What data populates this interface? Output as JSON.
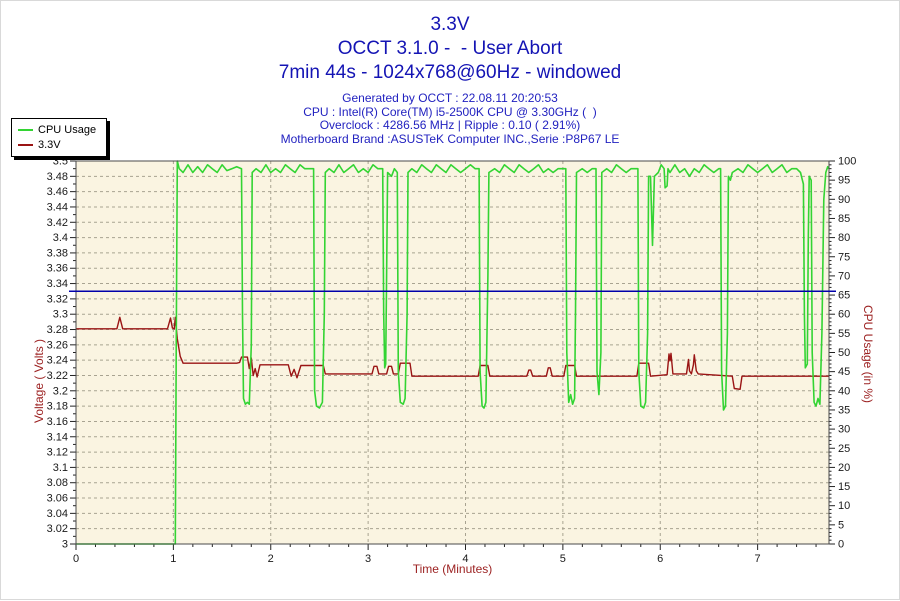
{
  "header": {
    "title1": "3.3V",
    "title2": "OCCT 3.1.0 -  - User Abort",
    "title3": "7min 44s - 1024x768@60Hz - windowed",
    "info1": "Generated by OCCT : 22.08.11 20:20:53",
    "info2": "CPU : Intel(R) Core(TM) i5-2500K CPU @ 3.30GHz (  )",
    "info3": "Overclock : 4286.56 MHz | Ripple : 0.10 ( 2.91%)",
    "info4": "Motherboard Brand :ASUSTeK Computer INC.,Serie :P8P67 LE"
  },
  "colors": {
    "title_blue": "#1414b4",
    "info_blue": "#2222c0",
    "cpu_green": "#33d433",
    "volt_red": "#9a1414",
    "axis_title_red": "#9b1f1f",
    "tick_label": "#1a1a1a",
    "plot_bg": "#faf4e1",
    "grid": "#a8a391",
    "plot_border": "#4a4a4a",
    "reference_blue": "#0000aa"
  },
  "chart_data": {
    "type": "line",
    "title": "3.3V",
    "xlabel": "Time (Minutes)",
    "ylabel_left": "Voltage ( Volts )",
    "ylabel_right": "CPU Usage (in %)",
    "x_range": [
      0,
      7.733
    ],
    "x_major_step": 1,
    "x_minor_step": 0.2,
    "y_left_range": [
      3.0,
      3.5
    ],
    "y_left_major_step": 0.02,
    "y_left_minor_step": 0.01,
    "y_right_range": [
      0,
      100
    ],
    "y_right_major_step": 5,
    "y_right_minor_step": 1,
    "grid": "dashed",
    "legend_position": "top-left",
    "reference_line": {
      "axis": "left",
      "value": 3.33
    },
    "series": [
      {
        "name": "3.3V",
        "axis": "left",
        "color": "#9a1414",
        "points": [
          [
            0,
            3.281
          ],
          [
            0.42,
            3.281
          ],
          [
            0.45,
            3.296
          ],
          [
            0.48,
            3.281
          ],
          [
            0.94,
            3.281
          ],
          [
            0.97,
            3.295
          ],
          [
            0.99,
            3.282
          ],
          [
            1.01,
            3.281
          ],
          [
            1.02,
            3.296
          ],
          [
            1.04,
            3.268
          ],
          [
            1.07,
            3.245
          ],
          [
            1.1,
            3.236
          ],
          [
            1.65,
            3.236
          ],
          [
            1.68,
            3.237
          ],
          [
            1.7,
            3.244
          ],
          [
            1.76,
            3.244
          ],
          [
            1.78,
            3.229
          ],
          [
            1.8,
            3.243
          ],
          [
            1.82,
            3.22
          ],
          [
            1.84,
            3.229
          ],
          [
            1.86,
            3.218
          ],
          [
            1.89,
            3.234
          ],
          [
            2.18,
            3.234
          ],
          [
            2.21,
            3.219
          ],
          [
            2.24,
            3.228
          ],
          [
            2.27,
            3.217
          ],
          [
            2.31,
            3.233
          ],
          [
            2.54,
            3.233
          ],
          [
            2.56,
            3.222
          ],
          [
            3.04,
            3.222
          ],
          [
            3.06,
            3.232
          ],
          [
            3.09,
            3.232
          ],
          [
            3.11,
            3.222
          ],
          [
            3.19,
            3.222
          ],
          [
            3.21,
            3.232
          ],
          [
            3.24,
            3.232
          ],
          [
            3.26,
            3.222
          ],
          [
            3.31,
            3.222
          ],
          [
            3.33,
            3.236
          ],
          [
            3.43,
            3.236
          ],
          [
            3.45,
            3.219
          ],
          [
            4.13,
            3.219
          ],
          [
            4.15,
            3.233
          ],
          [
            4.23,
            3.233
          ],
          [
            4.25,
            3.219
          ],
          [
            4.63,
            3.219
          ],
          [
            4.65,
            3.227
          ],
          [
            4.67,
            3.227
          ],
          [
            4.69,
            3.219
          ],
          [
            4.83,
            3.219
          ],
          [
            4.85,
            3.23
          ],
          [
            4.87,
            3.23
          ],
          [
            4.89,
            3.219
          ],
          [
            5.01,
            3.219
          ],
          [
            5.03,
            3.233
          ],
          [
            5.12,
            3.233
          ],
          [
            5.14,
            3.219
          ],
          [
            5.76,
            3.219
          ],
          [
            5.78,
            3.236
          ],
          [
            5.88,
            3.236
          ],
          [
            5.9,
            3.219
          ],
          [
            6.07,
            3.221
          ],
          [
            6.09,
            3.248
          ],
          [
            6.1,
            3.239
          ],
          [
            6.11,
            3.249
          ],
          [
            6.13,
            3.222
          ],
          [
            6.27,
            3.222
          ],
          [
            6.29,
            3.241
          ],
          [
            6.3,
            3.226
          ],
          [
            6.32,
            3.222
          ],
          [
            6.34,
            3.234
          ],
          [
            6.35,
            3.247
          ],
          [
            6.37,
            3.226
          ],
          [
            6.39,
            3.222
          ],
          [
            6.74,
            3.219
          ],
          [
            6.76,
            3.203
          ],
          [
            6.82,
            3.202
          ],
          [
            6.84,
            3.219
          ],
          [
            7.73,
            3.219
          ]
        ]
      },
      {
        "name": "CPU Usage",
        "axis": "right",
        "color": "#33d433",
        "points": [
          [
            0,
            0
          ],
          [
            0.99,
            0
          ],
          [
            1.02,
            0
          ],
          [
            1.03,
            55
          ],
          [
            1.04,
            100
          ],
          [
            1.06,
            98
          ],
          [
            1.1,
            97
          ],
          [
            1.15,
            99
          ],
          [
            1.2,
            97
          ],
          [
            1.25,
            98.5
          ],
          [
            1.3,
            97
          ],
          [
            1.35,
            99
          ],
          [
            1.4,
            98
          ],
          [
            1.45,
            97
          ],
          [
            1.5,
            99
          ],
          [
            1.55,
            97.5
          ],
          [
            1.6,
            98
          ],
          [
            1.65,
            98.5
          ],
          [
            1.7,
            98
          ],
          [
            1.71,
            60
          ],
          [
            1.72,
            38
          ],
          [
            1.74,
            36.5
          ],
          [
            1.76,
            37
          ],
          [
            1.78,
            36.5
          ],
          [
            1.8,
            52
          ],
          [
            1.81,
            97
          ],
          [
            1.85,
            98
          ],
          [
            1.9,
            97
          ],
          [
            1.95,
            99
          ],
          [
            2,
            97
          ],
          [
            2.05,
            98
          ],
          [
            2.1,
            97
          ],
          [
            2.15,
            99
          ],
          [
            2.2,
            98
          ],
          [
            2.25,
            97
          ],
          [
            2.3,
            99
          ],
          [
            2.35,
            98
          ],
          [
            2.4,
            98
          ],
          [
            2.44,
            98
          ],
          [
            2.45,
            40
          ],
          [
            2.47,
            36
          ],
          [
            2.5,
            35.5
          ],
          [
            2.53,
            37
          ],
          [
            2.55,
            60
          ],
          [
            2.56,
            97
          ],
          [
            2.6,
            98
          ],
          [
            2.65,
            97
          ],
          [
            2.7,
            99
          ],
          [
            2.75,
            97
          ],
          [
            2.8,
            98
          ],
          [
            2.85,
            99
          ],
          [
            2.9,
            97
          ],
          [
            2.95,
            98
          ],
          [
            3,
            97
          ],
          [
            3.05,
            99
          ],
          [
            3.1,
            98
          ],
          [
            3.15,
            98
          ],
          [
            3.16,
            60
          ],
          [
            3.17,
            46
          ],
          [
            3.18,
            47
          ],
          [
            3.19,
            70
          ],
          [
            3.2,
            97
          ],
          [
            3.24,
            96
          ],
          [
            3.27,
            98
          ],
          [
            3.3,
            97
          ],
          [
            3.31,
            45
          ],
          [
            3.33,
            37
          ],
          [
            3.36,
            36.5
          ],
          [
            3.38,
            38
          ],
          [
            3.4,
            60
          ],
          [
            3.41,
            97
          ],
          [
            3.45,
            98
          ],
          [
            3.5,
            97
          ],
          [
            3.55,
            99
          ],
          [
            3.6,
            98
          ],
          [
            3.65,
            97
          ],
          [
            3.7,
            99
          ],
          [
            3.75,
            98
          ],
          [
            3.8,
            97
          ],
          [
            3.85,
            99
          ],
          [
            3.9,
            98
          ],
          [
            3.95,
            97
          ],
          [
            4,
            98
          ],
          [
            4.05,
            99
          ],
          [
            4.1,
            98
          ],
          [
            4.14,
            98
          ],
          [
            4.15,
            45
          ],
          [
            4.17,
            36
          ],
          [
            4.19,
            35.5
          ],
          [
            4.21,
            37
          ],
          [
            4.23,
            70
          ],
          [
            4.24,
            97
          ],
          [
            4.3,
            98
          ],
          [
            4.35,
            97
          ],
          [
            4.4,
            99
          ],
          [
            4.45,
            98
          ],
          [
            4.5,
            97
          ],
          [
            4.55,
            99
          ],
          [
            4.6,
            98
          ],
          [
            4.65,
            97
          ],
          [
            4.7,
            98
          ],
          [
            4.75,
            99
          ],
          [
            4.8,
            97
          ],
          [
            4.85,
            98
          ],
          [
            4.9,
            97
          ],
          [
            4.95,
            98
          ],
          [
            5,
            98
          ],
          [
            5.03,
            98
          ],
          [
            5.04,
            50
          ],
          [
            5.06,
            37
          ],
          [
            5.08,
            39
          ],
          [
            5.1,
            36.5
          ],
          [
            5.12,
            38
          ],
          [
            5.13,
            60
          ],
          [
            5.14,
            97
          ],
          [
            5.2,
            98
          ],
          [
            5.25,
            97
          ],
          [
            5.3,
            98
          ],
          [
            5.34,
            98
          ],
          [
            5.35,
            45
          ],
          [
            5.37,
            39
          ],
          [
            5.39,
            50
          ],
          [
            5.4,
            97
          ],
          [
            5.45,
            98
          ],
          [
            5.5,
            97
          ],
          [
            5.55,
            99
          ],
          [
            5.6,
            98
          ],
          [
            5.65,
            97
          ],
          [
            5.7,
            98
          ],
          [
            5.75,
            98
          ],
          [
            5.77,
            98
          ],
          [
            5.78,
            45
          ],
          [
            5.8,
            36
          ],
          [
            5.83,
            35.5
          ],
          [
            5.85,
            37
          ],
          [
            5.87,
            55
          ],
          [
            5.88,
            96
          ],
          [
            5.9,
            96
          ],
          [
            5.92,
            78
          ],
          [
            5.94,
            96
          ],
          [
            5.98,
            97
          ],
          [
            6.01,
            99
          ],
          [
            6.04,
            98
          ],
          [
            6.05,
            93
          ],
          [
            6.07,
            93.5
          ],
          [
            6.08,
            98
          ],
          [
            6.1,
            97
          ],
          [
            6.15,
            99
          ],
          [
            6.2,
            97
          ],
          [
            6.25,
            98
          ],
          [
            6.3,
            96
          ],
          [
            6.35,
            98
          ],
          [
            6.4,
            97
          ],
          [
            6.45,
            99
          ],
          [
            6.5,
            98
          ],
          [
            6.55,
            97
          ],
          [
            6.6,
            98
          ],
          [
            6.62,
            98
          ],
          [
            6.63,
            45
          ],
          [
            6.65,
            35
          ],
          [
            6.67,
            36
          ],
          [
            6.69,
            55
          ],
          [
            6.7,
            96
          ],
          [
            6.72,
            95
          ],
          [
            6.74,
            97
          ],
          [
            6.8,
            98
          ],
          [
            6.85,
            97
          ],
          [
            6.9,
            99
          ],
          [
            6.95,
            98
          ],
          [
            7,
            97
          ],
          [
            7.05,
            98
          ],
          [
            7.1,
            99
          ],
          [
            7.15,
            97
          ],
          [
            7.2,
            98
          ],
          [
            7.25,
            99
          ],
          [
            7.3,
            97
          ],
          [
            7.35,
            98
          ],
          [
            7.4,
            98
          ],
          [
            7.44,
            97
          ],
          [
            7.46,
            95
          ],
          [
            7.47,
            94
          ],
          [
            7.48,
            60
          ],
          [
            7.49,
            46
          ],
          [
            7.51,
            47
          ],
          [
            7.52,
            80
          ],
          [
            7.53,
            96
          ],
          [
            7.55,
            95
          ],
          [
            7.56,
            50
          ],
          [
            7.58,
            37
          ],
          [
            7.6,
            36
          ],
          [
            7.62,
            38
          ],
          [
            7.64,
            36.5
          ],
          [
            7.66,
            55
          ],
          [
            7.68,
            90
          ],
          [
            7.7,
            97
          ],
          [
            7.72,
            98.5
          ],
          [
            7.73,
            98
          ]
        ]
      }
    ]
  }
}
